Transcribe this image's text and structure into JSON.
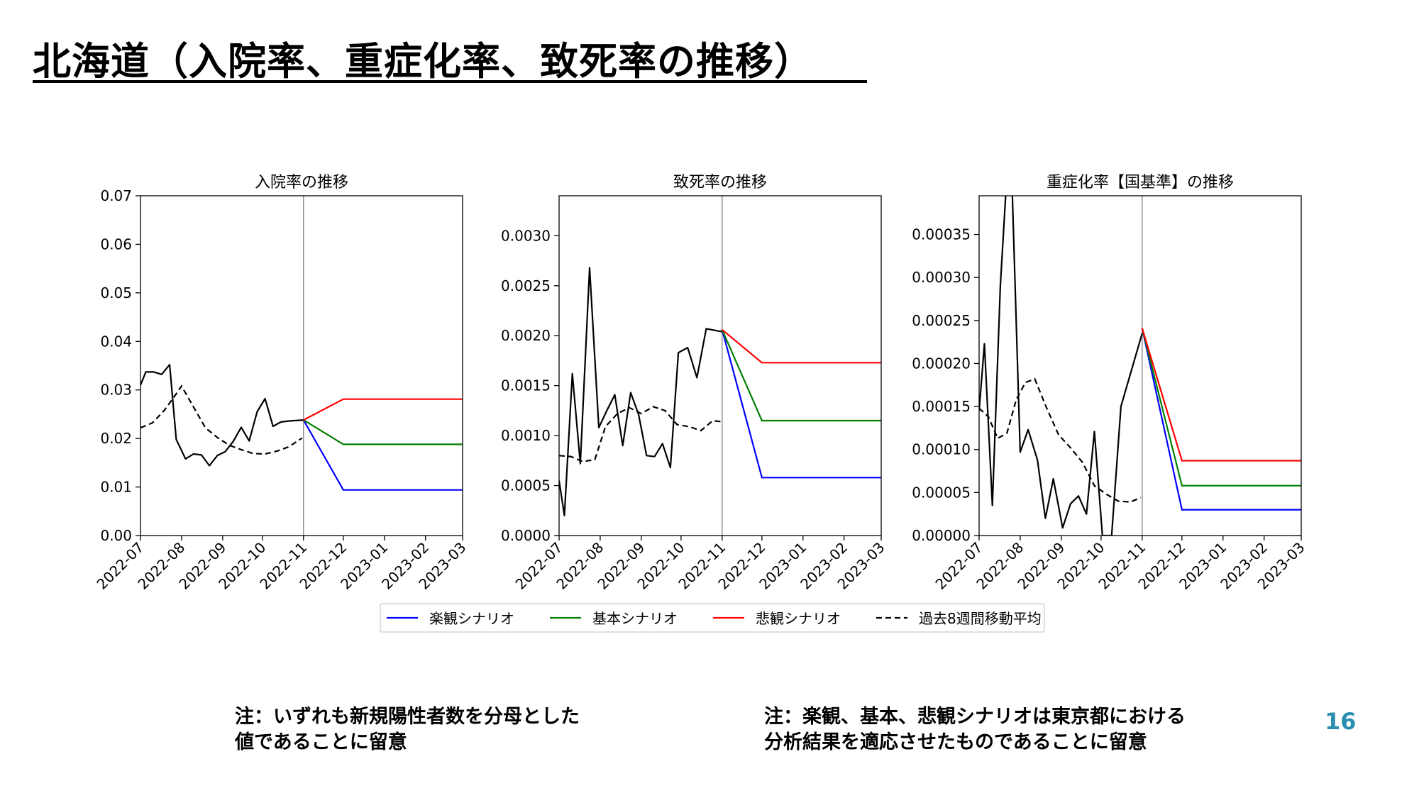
{
  "title": "北海道（入院率、重症化率、致死率の推移）",
  "page_number": "16",
  "notes": [
    [
      "注：いずれも新規陽性者数を分母とした",
      "値であることに留意"
    ],
    [
      "注：楽観、基本、悲観シナリオは東京都における",
      "分析結果を適応させたものであることに留意"
    ]
  ],
  "colors": {
    "optimistic": "#0000ff",
    "baseline": "#008000",
    "pessimistic": "#ff0000",
    "moving_average": "#000000",
    "actual": "#000000",
    "page_number": "#2b8fb2"
  },
  "legend": {
    "items": [
      {
        "key": "optimistic",
        "label": "楽観シナリオ",
        "style": "solid"
      },
      {
        "key": "baseline",
        "label": "基本シナリオ",
        "style": "solid"
      },
      {
        "key": "pessimistic",
        "label": "悲観シナリオ",
        "style": "solid"
      },
      {
        "key": "moving_average",
        "label": "過去8週間移動平均",
        "style": "dashed"
      }
    ]
  },
  "chart_data": [
    {
      "type": "line",
      "title": "入院率の推移",
      "x_ticks": [
        "2022-07",
        "2022-08",
        "2022-09",
        "2022-10",
        "2022-11",
        "2022-12",
        "2023-01",
        "2023-02",
        "2023-03"
      ],
      "xlim": [
        "2022-07-01",
        "2023-03-01"
      ],
      "ylim": [
        0,
        0.07
      ],
      "y_ticks": [
        "0.00",
        "0.01",
        "0.02",
        "0.03",
        "0.04",
        "0.05",
        "0.06",
        "0.07"
      ],
      "divider": "2022-11-01",
      "actual": [
        [
          "2022-07-01",
          0.031
        ],
        [
          "2022-07-05",
          0.0337
        ],
        [
          "2022-07-11",
          0.0337
        ],
        [
          "2022-07-17",
          0.0332
        ],
        [
          "2022-07-23",
          0.0352
        ],
        [
          "2022-07-28",
          0.0198
        ],
        [
          "2022-08-04",
          0.0158
        ],
        [
          "2022-08-10",
          0.0168
        ],
        [
          "2022-08-16",
          0.0166
        ],
        [
          "2022-08-22",
          0.0144
        ],
        [
          "2022-08-28",
          0.0165
        ],
        [
          "2022-09-03",
          0.0173
        ],
        [
          "2022-09-09",
          0.0194
        ],
        [
          "2022-09-15",
          0.0223
        ],
        [
          "2022-09-21",
          0.0195
        ],
        [
          "2022-09-27",
          0.0255
        ],
        [
          "2022-10-03",
          0.0282
        ],
        [
          "2022-10-09",
          0.0225
        ],
        [
          "2022-10-15",
          0.0234
        ],
        [
          "2022-10-21",
          0.0236
        ],
        [
          "2022-11-01",
          0.0238
        ]
      ],
      "moving_average": [
        [
          "2022-07-01",
          0.0222
        ],
        [
          "2022-07-10",
          0.0232
        ],
        [
          "2022-07-19",
          0.0258
        ],
        [
          "2022-07-28",
          0.0292
        ],
        [
          "2022-08-01",
          0.0308
        ],
        [
          "2022-08-10",
          0.0265
        ],
        [
          "2022-08-19",
          0.0222
        ],
        [
          "2022-08-28",
          0.0202
        ],
        [
          "2022-09-06",
          0.0186
        ],
        [
          "2022-09-15",
          0.0177
        ],
        [
          "2022-09-24",
          0.0169
        ],
        [
          "2022-10-03",
          0.0168
        ],
        [
          "2022-10-12",
          0.0174
        ],
        [
          "2022-10-21",
          0.0183
        ],
        [
          "2022-10-31",
          0.0201
        ]
      ],
      "scenarios": {
        "pessimistic": [
          [
            "2022-11-01",
            0.0238
          ],
          [
            "2022-12-01",
            0.0281
          ],
          [
            "2023-03-01",
            0.0281
          ]
        ],
        "baseline": [
          [
            "2022-11-01",
            0.0238
          ],
          [
            "2022-12-01",
            0.0188
          ],
          [
            "2023-03-01",
            0.0188
          ]
        ],
        "optimistic": [
          [
            "2022-11-01",
            0.0238
          ],
          [
            "2022-12-01",
            0.0094
          ],
          [
            "2023-03-01",
            0.0094
          ]
        ]
      }
    },
    {
      "type": "line",
      "title": "致死率の推移",
      "x_ticks": [
        "2022-07",
        "2022-08",
        "2022-09",
        "2022-10",
        "2022-11",
        "2022-12",
        "2023-01",
        "2023-02",
        "2023-03"
      ],
      "xlim": [
        "2022-07-01",
        "2023-03-01"
      ],
      "ylim": [
        0,
        0.0034
      ],
      "y_ticks": [
        "0.0000",
        "0.0005",
        "0.0010",
        "0.0015",
        "0.0020",
        "0.0025",
        "0.0030"
      ],
      "divider": "2022-11-01",
      "actual": [
        [
          "2022-07-01",
          0.00055
        ],
        [
          "2022-07-05",
          0.0002
        ],
        [
          "2022-07-11",
          0.00162
        ],
        [
          "2022-07-17",
          0.00072
        ],
        [
          "2022-07-24",
          0.00268
        ],
        [
          "2022-07-31",
          0.00108
        ],
        [
          "2022-08-06",
          0.00125
        ],
        [
          "2022-08-12",
          0.00141
        ],
        [
          "2022-08-18",
          0.0009
        ],
        [
          "2022-08-24",
          0.00143
        ],
        [
          "2022-08-30",
          0.00121
        ],
        [
          "2022-09-05",
          0.0008
        ],
        [
          "2022-09-11",
          0.00079
        ],
        [
          "2022-09-17",
          0.00092
        ],
        [
          "2022-09-23",
          0.00068
        ],
        [
          "2022-09-29",
          0.00183
        ],
        [
          "2022-10-06",
          0.00188
        ],
        [
          "2022-10-13",
          0.00158
        ],
        [
          "2022-10-20",
          0.00207
        ],
        [
          "2022-11-01",
          0.00204
        ]
      ],
      "moving_average": [
        [
          "2022-07-01",
          0.0008
        ],
        [
          "2022-07-10",
          0.00079
        ],
        [
          "2022-07-19",
          0.00074
        ],
        [
          "2022-07-28",
          0.00076
        ],
        [
          "2022-08-05",
          0.00109
        ],
        [
          "2022-08-14",
          0.00122
        ],
        [
          "2022-08-23",
          0.00128
        ],
        [
          "2022-09-01",
          0.00122
        ],
        [
          "2022-09-10",
          0.00129
        ],
        [
          "2022-09-19",
          0.00125
        ],
        [
          "2022-09-28",
          0.00111
        ],
        [
          "2022-10-07",
          0.00109
        ],
        [
          "2022-10-16",
          0.00105
        ],
        [
          "2022-10-25",
          0.00115
        ],
        [
          "2022-10-31",
          0.00114
        ]
      ],
      "scenarios": {
        "pessimistic": [
          [
            "2022-11-01",
            0.00206
          ],
          [
            "2022-12-01",
            0.00173
          ],
          [
            "2023-03-01",
            0.00173
          ]
        ],
        "baseline": [
          [
            "2022-11-01",
            0.00206
          ],
          [
            "2022-12-01",
            0.00115
          ],
          [
            "2023-03-01",
            0.00115
          ]
        ],
        "optimistic": [
          [
            "2022-11-01",
            0.00206
          ],
          [
            "2022-12-01",
            0.00058
          ],
          [
            "2023-03-01",
            0.00058
          ]
        ]
      }
    },
    {
      "type": "line",
      "title": "重症化率【国基準】の推移",
      "x_ticks": [
        "2022-07",
        "2022-08",
        "2022-09",
        "2022-10",
        "2022-11",
        "2022-12",
        "2023-01",
        "2023-02",
        "2023-03"
      ],
      "xlim": [
        "2022-07-01",
        "2023-03-01"
      ],
      "ylim": [
        0,
        0.000395
      ],
      "y_ticks": [
        "0.00000",
        "0.00005",
        "0.00010",
        "0.00015",
        "0.00020",
        "0.00025",
        "0.00030",
        "0.00035"
      ],
      "divider": "2022-11-01",
      "actual": [
        [
          "2022-07-01",
          0.000145
        ],
        [
          "2022-07-05",
          0.000223
        ],
        [
          "2022-07-11",
          3.5e-05
        ],
        [
          "2022-07-17",
          0.00029
        ],
        [
          "2022-07-21",
          0.000395
        ],
        [
          "2022-07-26",
          0.0004
        ],
        [
          "2022-08-01",
          9.7e-05
        ],
        [
          "2022-08-07",
          0.000123
        ],
        [
          "2022-08-14",
          8.8e-05
        ],
        [
          "2022-08-20",
          2e-05
        ],
        [
          "2022-08-26",
          6.6e-05
        ],
        [
          "2022-09-02",
          9e-06
        ],
        [
          "2022-09-08",
          3.7e-05
        ],
        [
          "2022-09-14",
          4.6e-05
        ],
        [
          "2022-09-20",
          2.5e-05
        ],
        [
          "2022-09-26",
          0.000121
        ],
        [
          "2022-10-02",
          0.0
        ],
        [
          "2022-10-09",
          0.0
        ],
        [
          "2022-10-16",
          0.00015
        ],
        [
          "2022-11-01",
          0.000235
        ]
      ],
      "moving_average": [
        [
          "2022-07-01",
          0.000148
        ],
        [
          "2022-07-08",
          0.000138
        ],
        [
          "2022-07-15",
          0.000113
        ],
        [
          "2022-07-22",
          0.000119
        ],
        [
          "2022-07-29",
          0.000158
        ],
        [
          "2022-08-05",
          0.000178
        ],
        [
          "2022-08-12",
          0.000182
        ],
        [
          "2022-08-21",
          0.000148
        ],
        [
          "2022-08-30",
          0.000117
        ],
        [
          "2022-09-08",
          0.000102
        ],
        [
          "2022-09-17",
          8.5e-05
        ],
        [
          "2022-09-26",
          5.8e-05
        ],
        [
          "2022-10-05",
          4.8e-05
        ],
        [
          "2022-10-14",
          4e-05
        ],
        [
          "2022-10-23",
          3.9e-05
        ],
        [
          "2022-10-31",
          4.4e-05
        ]
      ],
      "scenarios": {
        "pessimistic": [
          [
            "2022-11-01",
            0.000241
          ],
          [
            "2022-12-01",
            8.7e-05
          ],
          [
            "2023-03-01",
            8.7e-05
          ]
        ],
        "baseline": [
          [
            "2022-11-01",
            0.000241
          ],
          [
            "2022-12-01",
            5.8e-05
          ],
          [
            "2023-03-01",
            5.8e-05
          ]
        ],
        "optimistic": [
          [
            "2022-11-01",
            0.000241
          ],
          [
            "2022-12-01",
            3e-05
          ],
          [
            "2023-03-01",
            3e-05
          ]
        ]
      }
    }
  ]
}
